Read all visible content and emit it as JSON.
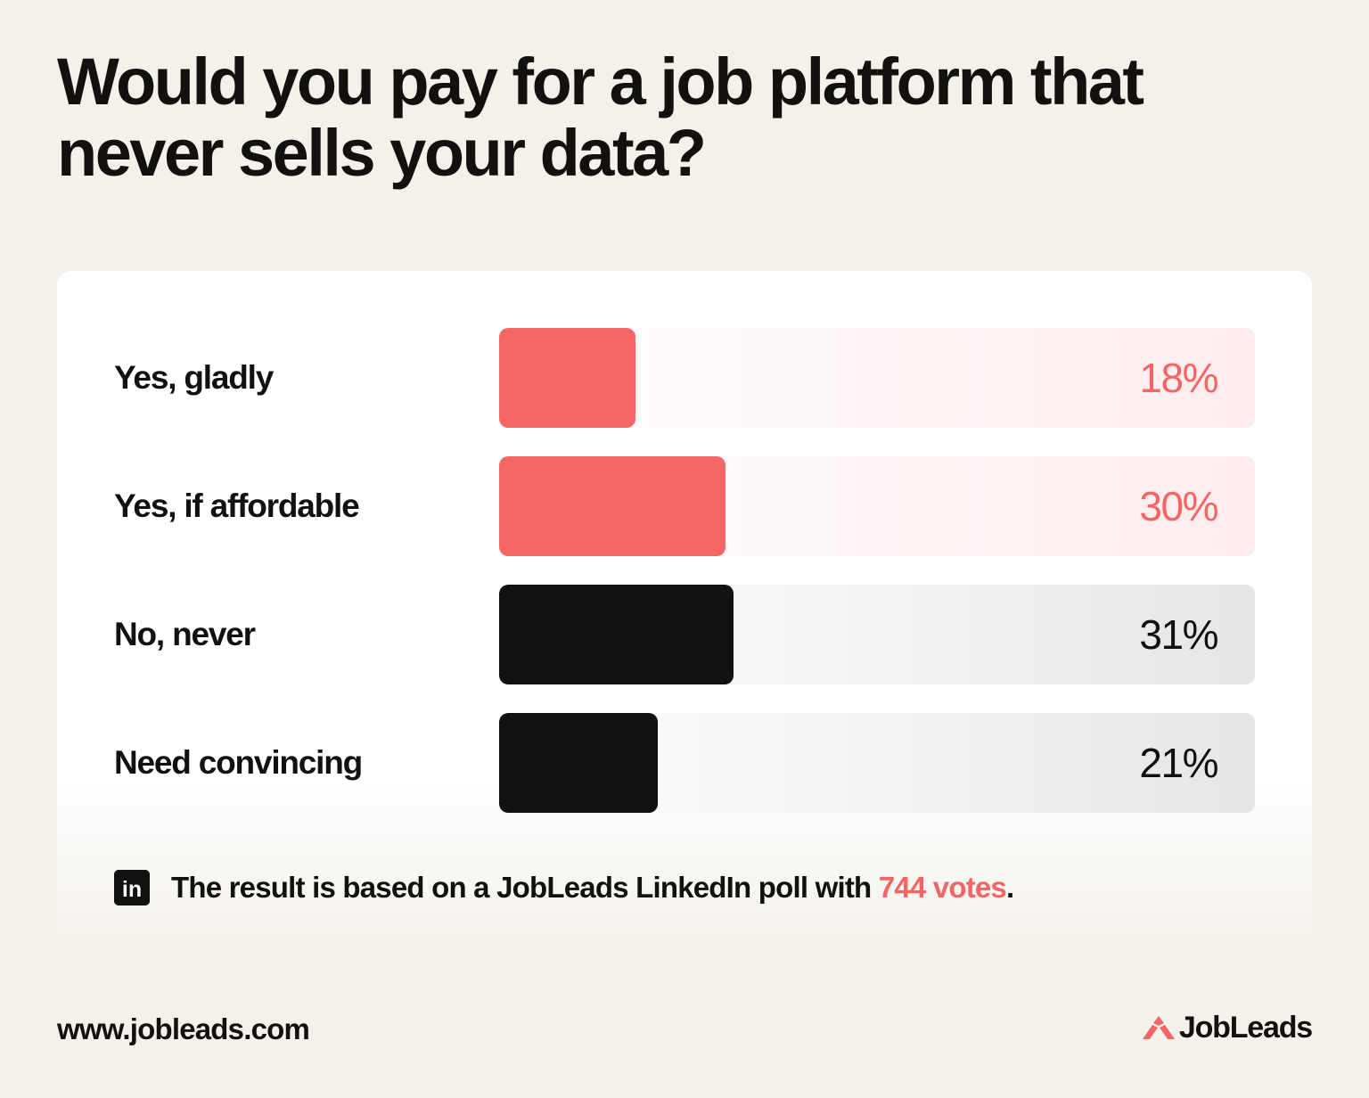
{
  "title": "Would you pay for a job platform that never sells your data?",
  "colors": {
    "accent": "#f46566",
    "dark": "#121110",
    "background": "#f4f1eb"
  },
  "chart_data": {
    "type": "bar",
    "orientation": "horizontal",
    "title": "Would you pay for a job platform that never sells your data?",
    "categories": [
      "Yes, gladly",
      "Yes, if affordable",
      "No, never",
      "Need convincing"
    ],
    "values": [
      18,
      30,
      31,
      21
    ],
    "value_labels": [
      "18%",
      "30%",
      "31%",
      "21%"
    ],
    "bar_colors": [
      "#f46566",
      "#f46566",
      "#121110",
      "#121110"
    ],
    "xlim": [
      0,
      100
    ],
    "grid": false
  },
  "note": {
    "icon": "linkedin-icon",
    "icon_text": "in",
    "text_before": "The result is based on a JobLeads LinkedIn poll with ",
    "highlight": "744 votes",
    "text_after": "."
  },
  "footer": {
    "url": "www.jobleads.com",
    "brand": "JobLeads",
    "brand_icon": "jobleads-logo-icon"
  }
}
